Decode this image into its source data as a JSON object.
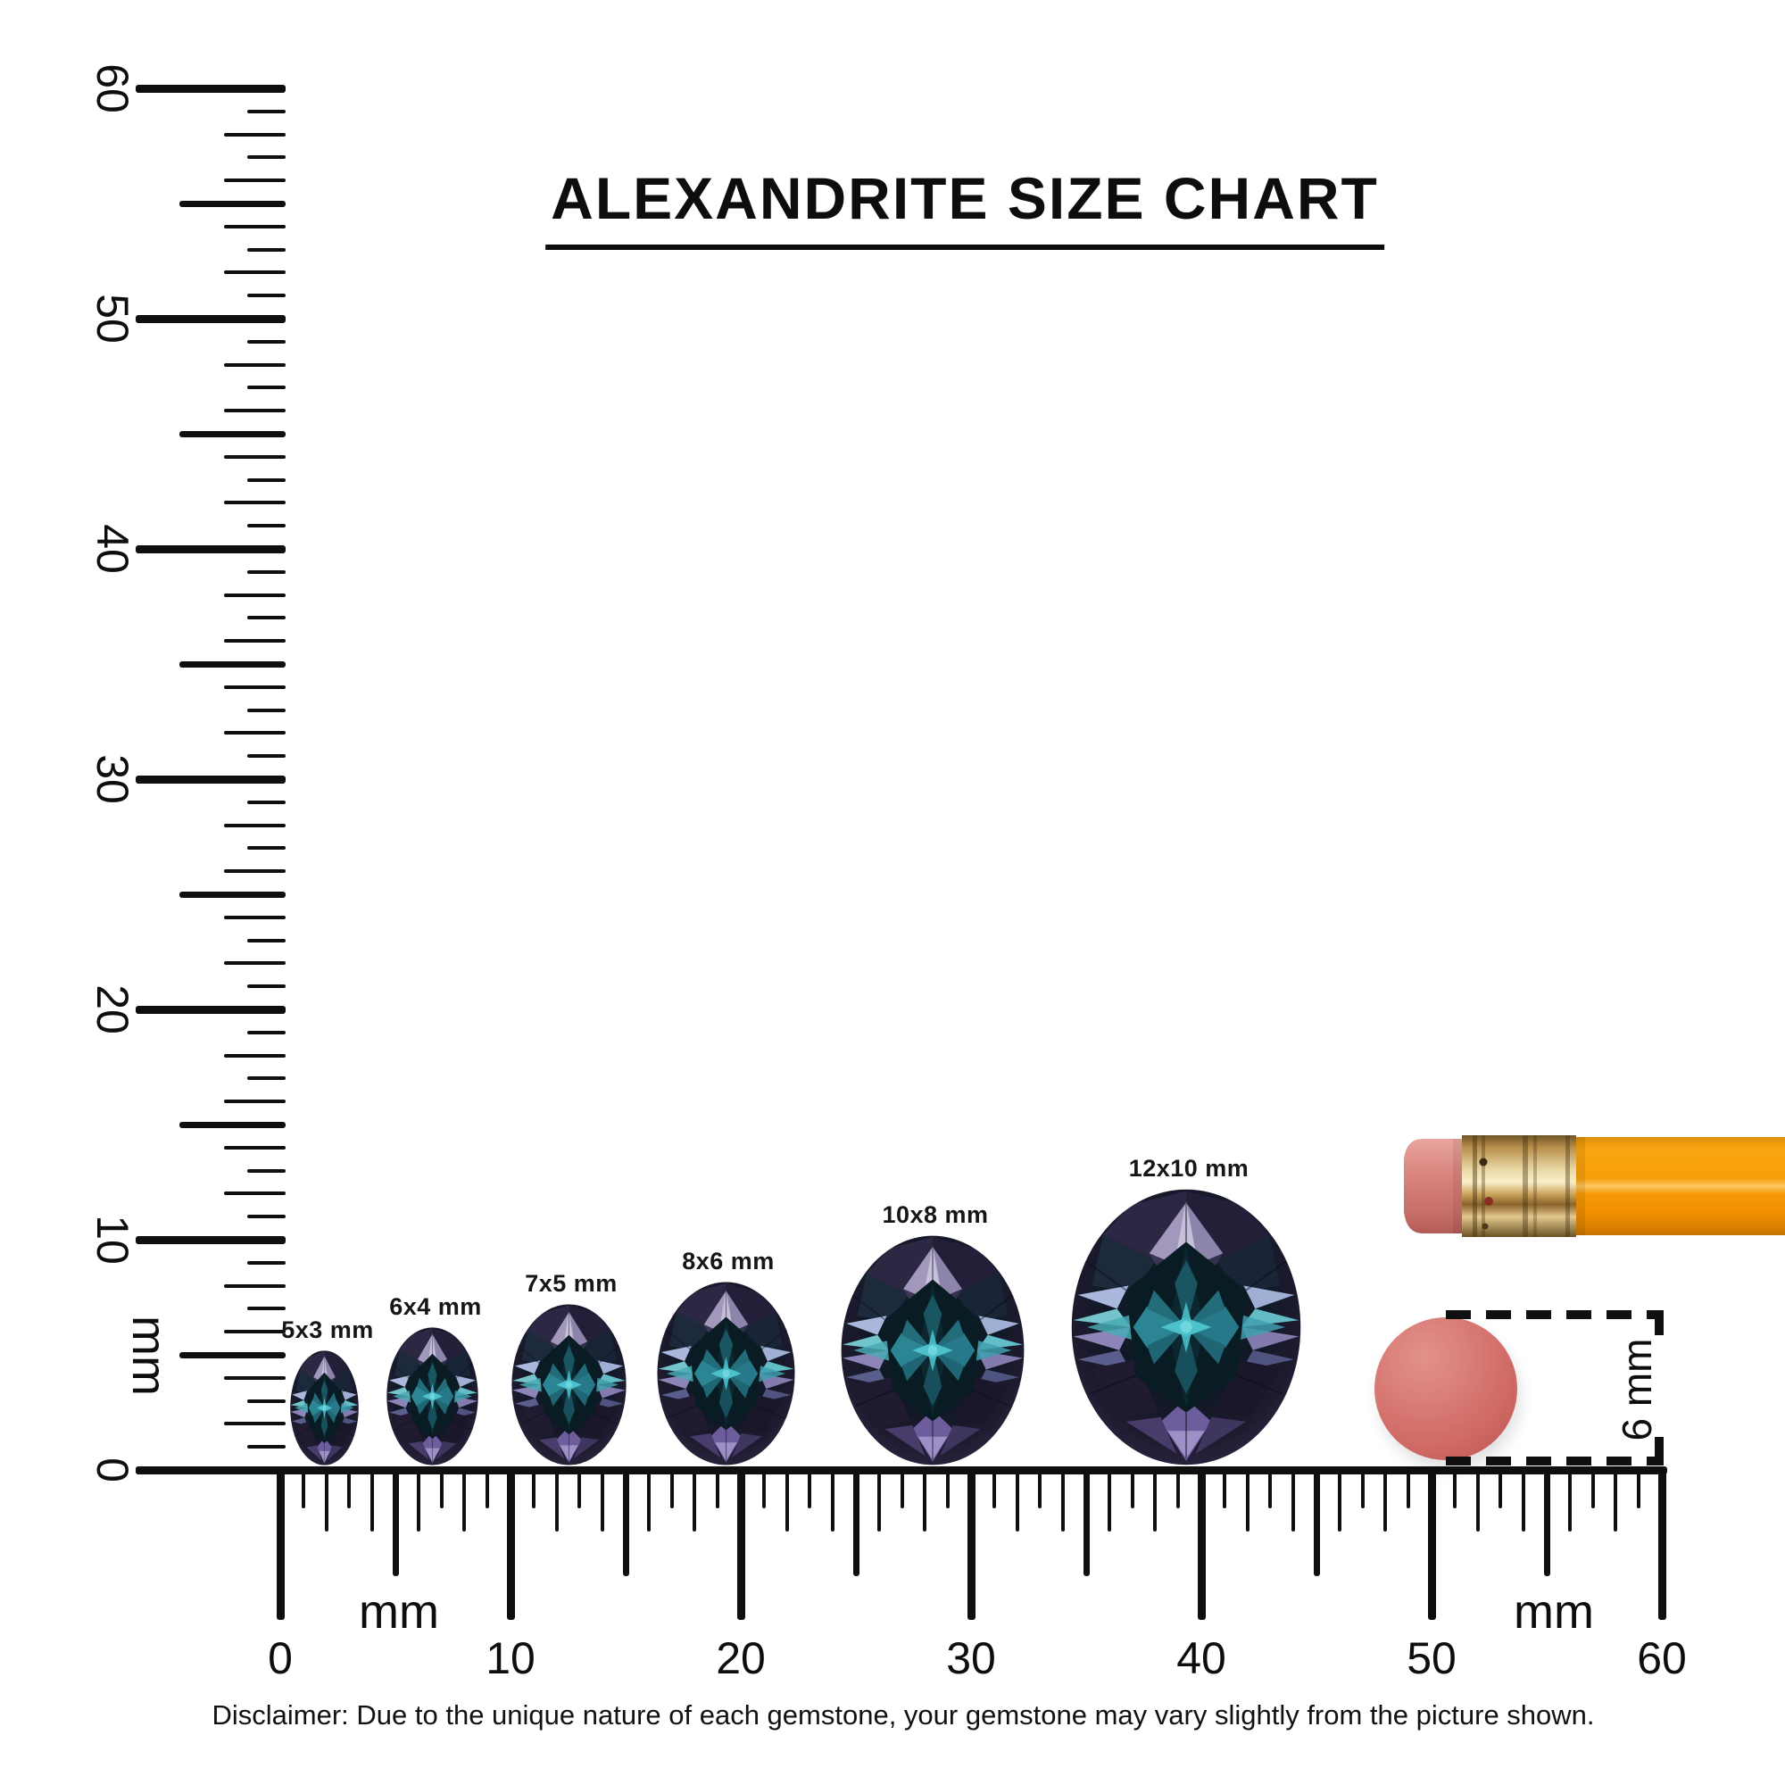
{
  "title": "ALEXANDRITE SIZE CHART",
  "vertical_ruler": {
    "unit": "mm",
    "tick_labels": [
      "0",
      "10",
      "20",
      "30",
      "40",
      "50",
      "60"
    ]
  },
  "horizontal_ruler": {
    "unit_label_left": "mm",
    "unit_label_right": "mm",
    "tick_labels": [
      "0",
      "10",
      "20",
      "30",
      "40",
      "50",
      "60"
    ]
  },
  "gems": [
    {
      "label": "5x3 mm",
      "width_mm": 3,
      "height_mm": 5
    },
    {
      "label": "6x4 mm",
      "width_mm": 4,
      "height_mm": 6
    },
    {
      "label": "7x5 mm",
      "width_mm": 5,
      "height_mm": 7
    },
    {
      "label": "8x6 mm",
      "width_mm": 6,
      "height_mm": 8
    },
    {
      "label": "10x8 mm",
      "width_mm": 8,
      "height_mm": 10
    },
    {
      "label": "12x10 mm",
      "width_mm": 10,
      "height_mm": 12
    }
  ],
  "reference_objects": {
    "disc_diameter_label": "6 mm"
  },
  "disclaimer": "Disclaimer: Due to the unique nature of each gemstone, your gemstone may vary slightly from the picture shown.",
  "colors": {
    "ink": "#0f0f0f",
    "gem_rim": "#262138",
    "gem_table": "#091c24",
    "gem_teal": "#2b8593",
    "gem_teal_bright": "#4cc0cb",
    "gem_lavender": "#a198bc",
    "gem_purple": "#6d5d9c",
    "pencil_orange": "#f89d05",
    "pencil_ferrule_gold": "#d9b272",
    "eraser_pink": "#d4837f",
    "disc_coral": "#d6736d"
  }
}
